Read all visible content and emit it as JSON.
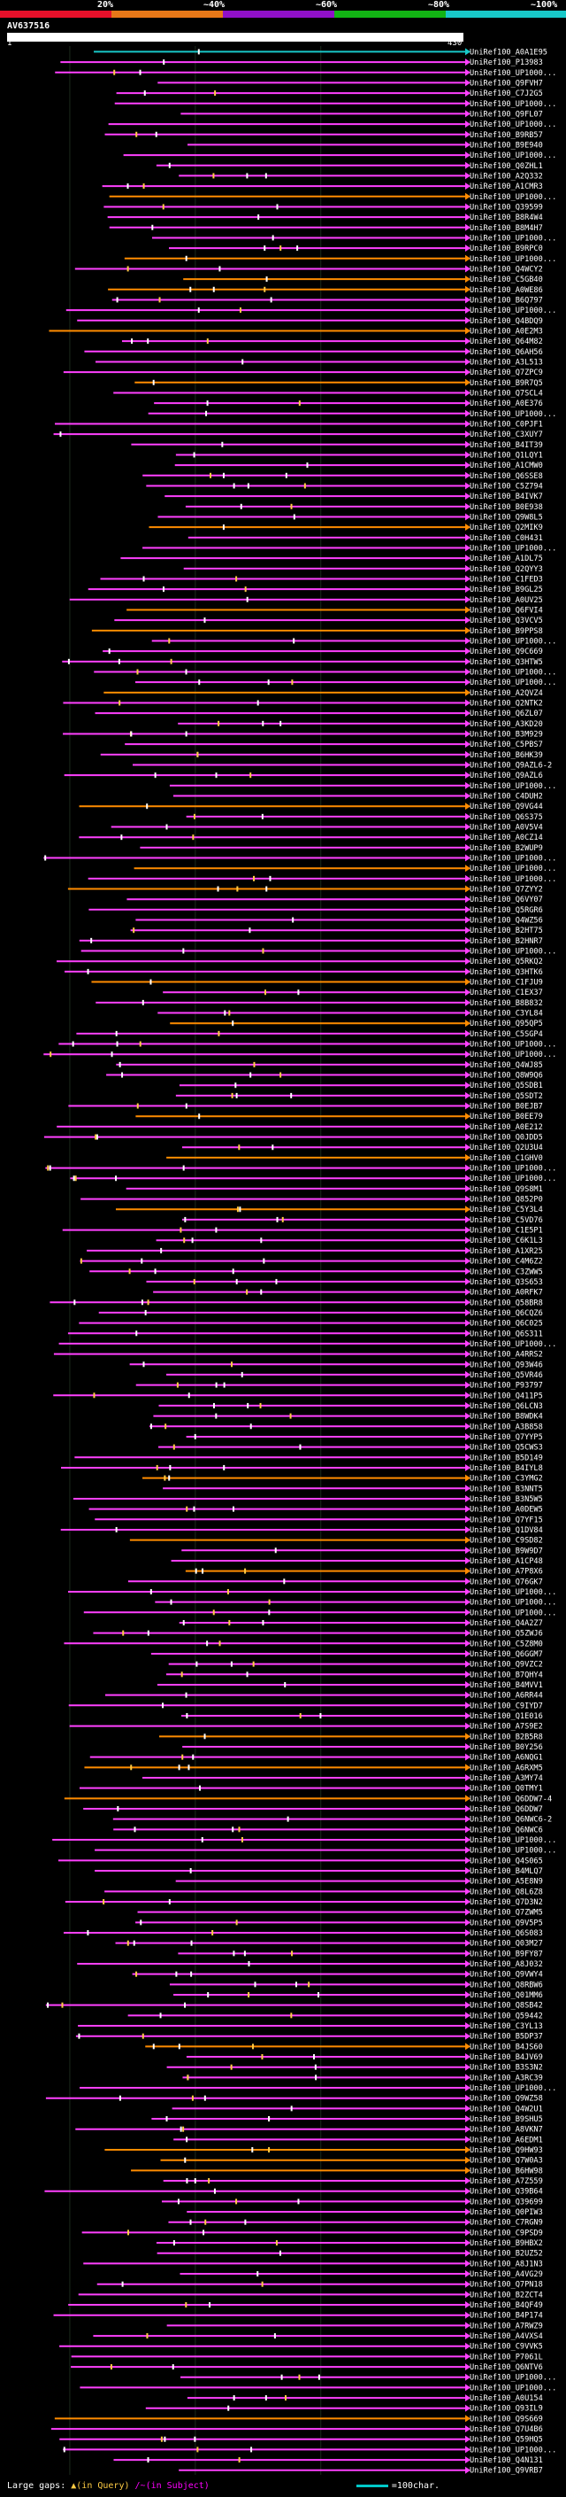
{
  "coverage_legend": [
    {
      "label": "20%",
      "color": "#e8102a"
    },
    {
      "label": "~40%",
      "color": "#e87818"
    },
    {
      "label": "~60%",
      "color": "#9010c8"
    },
    {
      "label": "~80%",
      "color": "#12b414"
    },
    {
      "label": "~100%",
      "color": "#18c8c8"
    }
  ],
  "query_id": "AV637516",
  "query_start": "1",
  "query_end": "430",
  "footer": {
    "large_gaps_label": "Large gaps:",
    "query_gap_label": "▲(in Query)",
    "subject_gap_label": "/~(in Subject)",
    "scale_label": "=100char."
  },
  "chart_data": {
    "type": "alignment-overview",
    "query_length": 430,
    "hit_colors": {
      "top_hit": "#18c8c8",
      "high": "#ff40ff",
      "mid": "#ff8c00"
    },
    "hits": [
      "UniRef100_A0A1E95",
      "UniRef100_P13983",
      "UniRef100_UP1000...",
      "UniRef100_Q9FVH7",
      "UniRef100_C7J2G5",
      "UniRef100_UP1000...",
      "UniRef100_Q9FL07",
      "UniRef100_UP1000...",
      "UniRef100_B9RB57",
      "UniRef100_B9E940",
      "UniRef100_UP1000...",
      "UniRef100_Q0ZHL1",
      "UniRef100_A2Q332",
      "UniRef100_A1CMR3",
      "UniRef100_UP1000...",
      "UniRef100_Q39599",
      "UniRef100_B8R4W4",
      "UniRef100_B8M4H7",
      "UniRef100_UP1000...",
      "UniRef100_B9RPC0",
      "UniRef100_UP1000...",
      "UniRef100_Q4WCY2",
      "UniRef100_C5GB40",
      "UniRef100_A0WE86",
      "UniRef100_B6Q797",
      "UniRef100_UP1000...",
      "UniRef100_Q4BDQ9",
      "UniRef100_A0E2M3",
      "UniRef100_Q64M82",
      "UniRef100_Q6AH56",
      "UniRef100_A3L513",
      "UniRef100_Q7ZPC9",
      "UniRef100_B9R7Q5",
      "UniRef100_Q7SCL4",
      "UniRef100_A0E376",
      "UniRef100_UP1000...",
      "UniRef100_C0PJF1",
      "UniRef100_C3XUY7",
      "UniRef100_B4IT39",
      "UniRef100_Q1LQY1",
      "UniRef100_A1CMW0",
      "UniRef100_Q6SSE8",
      "UniRef100_C5Z794",
      "UniRef100_B4IVK7",
      "UniRef100_B0E938",
      "UniRef100_Q9W8L5",
      "UniRef100_Q2MIK9",
      "UniRef100_C0H431",
      "UniRef100_UP1000...",
      "UniRef100_A1DL75",
      "UniRef100_Q2QYY3",
      "UniRef100_C1FED3",
      "UniRef100_B9GL25",
      "UniRef100_A0UV25",
      "UniRef100_Q6FVI4",
      "UniRef100_Q3VCV5",
      "UniRef100_B9PPS8",
      "UniRef100_UP1000...",
      "UniRef100_Q9C669",
      "UniRef100_Q3HTW5",
      "UniRef100_UP1000...",
      "UniRef100_UP1000...",
      "UniRef100_A2QVZ4",
      "UniRef100_Q2NTK2",
      "UniRef100_Q6ZL07",
      "UniRef100_A3KD20",
      "UniRef100_B3M929",
      "UniRef100_C5PBS7",
      "UniRef100_B6HK39",
      "UniRef100_Q9AZL6-2",
      "UniRef100_Q9AZL6",
      "UniRef100_UP1000...",
      "UniRef100_C4DUH2",
      "UniRef100_Q9VG44",
      "UniRef100_Q6S375",
      "UniRef100_A0V5V4",
      "UniRef100_A0CZ14",
      "UniRef100_B2WUP9",
      "UniRef100_UP1000...",
      "UniRef100_UP1000...",
      "UniRef100_UP1000...",
      "UniRef100_Q7ZYY2",
      "UniRef100_Q6VY07",
      "UniRef100_Q5RGR6",
      "UniRef100_Q4WZ56",
      "UniRef100_B2HT75",
      "UniRef100_B2HNR7",
      "UniRef100_UP1000...",
      "UniRef100_Q5RKQ2",
      "UniRef100_Q3HTK6",
      "UniRef100_C1FJU9",
      "UniRef100_C1EX37",
      "UniRef100_B8B832",
      "UniRef100_C3YL84",
      "UniRef100_Q95QP5",
      "UniRef100_C5SGP4",
      "UniRef100_UP1000...",
      "UniRef100_UP1000...",
      "UniRef100_Q4WJ85",
      "UniRef100_Q8W9Q6",
      "UniRef100_Q5SDB1",
      "UniRef100_Q5SDT2",
      "UniRef100_B0EJB7",
      "UniRef100_B0EE79",
      "UniRef100_A0E212",
      "UniRef100_Q0JDD5",
      "UniRef100_Q2U3U4",
      "UniRef100_C1GHV0",
      "UniRef100_UP1000...",
      "UniRef100_UP1000...",
      "UniRef100_Q9S8M1",
      "UniRef100_Q852P0",
      "UniRef100_C5Y3L4",
      "UniRef100_C5VD76",
      "UniRef100_C1E5P1",
      "UniRef100_C6K1L3",
      "UniRef100_A1XR25",
      "UniRef100_C4M6Z2",
      "UniRef100_C3ZWW5",
      "UniRef100_Q3S653",
      "UniRef100_A0RFK7",
      "UniRef100_Q58BR8",
      "UniRef100_Q6CQZ6",
      "UniRef100_Q6C025",
      "UniRef100_Q6S311",
      "UniRef100_UP1000...",
      "UniRef100_A4RRS2",
      "UniRef100_Q93W46",
      "UniRef100_Q5VR46",
      "UniRef100_P93797",
      "UniRef100_Q411P5",
      "UniRef100_Q6LCN3",
      "UniRef100_B8WDK4",
      "UniRef100_A3B858",
      "UniRef100_Q7YYP5",
      "UniRef100_Q5CWS3",
      "UniRef100_B5D149",
      "UniRef100_B4IYL8",
      "UniRef100_C3YMG2",
      "UniRef100_B3NNT5",
      "UniRef100_B3N5W5",
      "UniRef100_A0DEW5",
      "UniRef100_Q7YF15",
      "UniRef100_Q1DV84",
      "UniRef100_C9SD82",
      "UniRef100_B9W9D7",
      "UniRef100_A1CP48",
      "UniRef100_A7P8X6",
      "UniRef100_Q76GK7",
      "UniRef100_UP1000...",
      "UniRef100_UP1000...",
      "UniRef100_UP1000...",
      "UniRef100_Q4A2Z7",
      "UniRef100_Q5ZWJ6",
      "UniRef100_C5Z8M0",
      "UniRef100_Q6GGM7",
      "UniRef100_Q9VZC2",
      "UniRef100_B7QHY4",
      "UniRef100_B4MVV1",
      "UniRef100_A6RR44",
      "UniRef100_C9IYD7",
      "UniRef100_Q1E016",
      "UniRef100_A7S9E2",
      "UniRef100_B2B5R8",
      "UniRef100_B0Y256",
      "UniRef100_A6NQG1",
      "UniRef100_A6RXM5",
      "UniRef100_A3MY74",
      "UniRef100_Q0TMY1",
      "UniRef100_Q6DDW7-4",
      "UniRef100_Q6DDW7",
      "UniRef100_Q6NWC6-2",
      "UniRef100_Q6NWC6",
      "UniRef100_UP1000...",
      "UniRef100_UP1000...",
      "UniRef100_Q4S065",
      "UniRef100_B4MLQ7",
      "UniRef100_A5E8N9",
      "UniRef100_Q8L6Z8",
      "UniRef100_Q7D3N2",
      "UniRef100_Q7ZWM5",
      "UniRef100_Q9V5P5",
      "UniRef100_Q6S083",
      "UniRef100_Q03M27",
      "UniRef100_B9FY87",
      "UniRef100_A8J032",
      "UniRef100_Q9VWY4",
      "UniRef100_Q8RBW6",
      "UniRef100_Q01MM6",
      "UniRef100_Q8SB42",
      "UniRef100_Q59442",
      "UniRef100_C3YL13",
      "UniRef100_B5DP37",
      "UniRef100_B4JS60",
      "UniRef100_B4JV69",
      "UniRef100_B3S3N2",
      "UniRef100_A3RC39",
      "UniRef100_UP1000...",
      "UniRef100_Q9WZ58",
      "UniRef100_Q4W2U1",
      "UniRef100_B9SHU5",
      "UniRef100_A8VKN7",
      "UniRef100_A6EDM1",
      "UniRef100_Q9HW93",
      "UniRef100_Q7W0A3",
      "UniRef100_B6HW98",
      "UniRef100_A7Z559",
      "UniRef100_Q39B64",
      "UniRef100_Q39699",
      "UniRef100_Q0PIW3",
      "UniRef100_C7RGN9",
      "UniRef100_C9PSD9",
      "UniRef100_B9HBX2",
      "UniRef100_B2UZ52",
      "UniRef100_A8J1N3",
      "UniRef100_A4VG29",
      "UniRef100_Q7PN18",
      "UniRef100_B2ZCT4",
      "UniRef100_B4QF49",
      "UniRef100_B4P174",
      "UniRef100_A7RWZ9",
      "UniRef100_A4VXS4",
      "UniRef100_C9VVK5",
      "UniRef100_P7061L",
      "UniRef100_Q6NTV6",
      "UniRef100_UP1000...",
      "UniRef100_UP1000...",
      "UniRef100_A0U154",
      "UniRef100_Q93IL9",
      "UniRef100_Q9S669",
      "UniRef100_Q7U4B6",
      "UniRef100_Q59HQ5",
      "UniRef100_UP1000...",
      "UniRef100_Q4N131",
      "UniRef100_Q9VRB7"
    ]
  }
}
